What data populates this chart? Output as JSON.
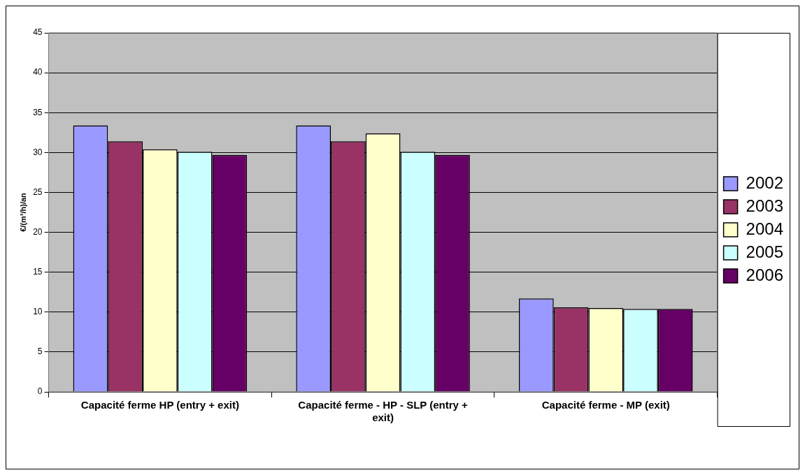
{
  "chart_data": {
    "type": "bar",
    "ylabel": "€/(m³/h)/an",
    "categories": [
      "Capacité ferme HP (entry + exit)",
      "Capacité ferme - HP - SLP (entry + exit)",
      "Capacité ferme - MP (exit)"
    ],
    "series": [
      {
        "name": "2002",
        "color": "#9999ff",
        "values": [
          33.4,
          33.4,
          11.7
        ]
      },
      {
        "name": "2003",
        "color": "#993366",
        "values": [
          31.4,
          31.4,
          10.6
        ]
      },
      {
        "name": "2004",
        "color": "#ffffcc",
        "values": [
          30.4,
          32.4,
          10.5
        ]
      },
      {
        "name": "2005",
        "color": "#ccffff",
        "values": [
          30.1,
          30.1,
          10.4
        ]
      },
      {
        "name": "2006",
        "color": "#660066",
        "values": [
          29.7,
          29.7,
          10.4
        ]
      }
    ],
    "ylim": [
      0,
      45
    ],
    "yticks": [
      0,
      5,
      10,
      15,
      20,
      25,
      30,
      35,
      40,
      45
    ],
    "grid": "y",
    "legend": "right"
  }
}
